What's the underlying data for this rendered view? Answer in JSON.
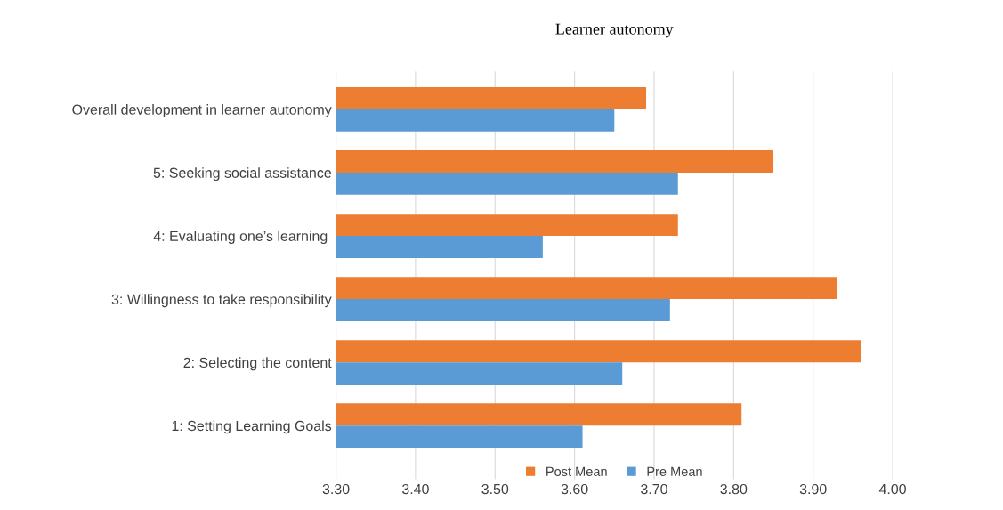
{
  "chart_data": {
    "type": "bar",
    "orientation": "horizontal",
    "title": "Learner autonomy",
    "categories": [
      "Overall development in learner autonomy",
      "5: Seeking social assistance",
      "4: Evaluating one’s learning ",
      "3: Willingness to take responsibility",
      "2: Selecting the content",
      "1: Setting Learning Goals"
    ],
    "series": [
      {
        "name": "Post Mean",
        "color": "#ed7d31",
        "values": [
          3.69,
          3.85,
          3.73,
          3.93,
          3.96,
          3.81
        ]
      },
      {
        "name": "Pre Mean",
        "color": "#5b9bd5",
        "values": [
          3.65,
          3.73,
          3.56,
          3.72,
          3.66,
          3.61
        ]
      }
    ],
    "xlim": [
      3.3,
      4.0
    ],
    "xticks": [
      {
        "value": 3.3,
        "label": "3.30"
      },
      {
        "value": 3.4,
        "label": "3.40"
      },
      {
        "value": 3.5,
        "label": "3.50"
      },
      {
        "value": 3.6,
        "label": "3.60"
      },
      {
        "value": 3.7,
        "label": "3.70"
      },
      {
        "value": 3.8,
        "label": "3.80"
      },
      {
        "value": 3.9,
        "label": "3.90"
      },
      {
        "value": 4.0,
        "label": "4.00"
      }
    ],
    "grid": "x",
    "legend": "bottom"
  }
}
